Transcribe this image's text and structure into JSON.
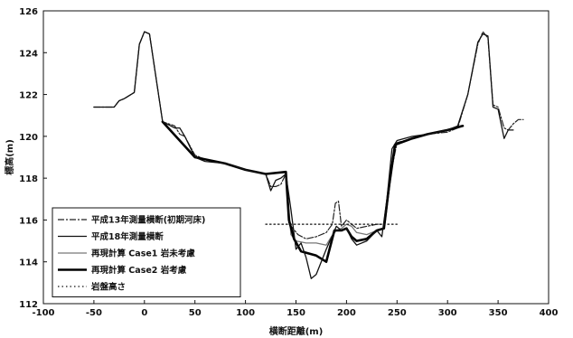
{
  "chart_data": {
    "type": "line",
    "title": "",
    "xlabel": "横断距離(m)",
    "ylabel": "標高(m)",
    "xlim": [
      -100,
      400
    ],
    "ylim": [
      112,
      126
    ],
    "xticks": [
      -100,
      -50,
      0,
      50,
      100,
      150,
      200,
      250,
      300,
      350,
      400
    ],
    "yticks": [
      112,
      114,
      116,
      118,
      120,
      122,
      124,
      126
    ],
    "grid": false,
    "legend_position": "bottom-left",
    "series": [
      {
        "name": "平成13年測量横断(初期河床)",
        "color": "#222222",
        "dash": "dashdot",
        "x": [
          -50,
          -40,
          -30,
          -25,
          -20,
          -10,
          -5,
          0,
          5,
          18,
          30,
          35,
          40,
          50,
          60,
          80,
          100,
          120,
          125,
          130,
          135,
          140,
          143,
          147,
          152,
          160,
          170,
          180,
          186,
          189,
          192,
          195,
          200,
          210,
          220,
          230,
          238,
          245,
          250,
          265,
          280,
          300,
          310,
          320,
          330,
          335,
          340,
          345,
          350,
          356,
          360,
          365,
          370,
          375
        ],
        "y": [
          121.4,
          121.4,
          121.4,
          121.7,
          121.8,
          122.1,
          124.4,
          125.0,
          124.9,
          120.7,
          120.5,
          120.1,
          120.0,
          119.1,
          118.9,
          118.7,
          118.4,
          118.2,
          117.6,
          117.6,
          117.7,
          118.2,
          115.8,
          115.6,
          115.3,
          115.1,
          115.2,
          115.4,
          115.8,
          116.8,
          116.9,
          115.7,
          116.0,
          115.6,
          115.7,
          115.8,
          115.8,
          118.5,
          119.7,
          119.9,
          120.1,
          120.2,
          120.4,
          122.0,
          124.4,
          125.0,
          124.7,
          121.5,
          121.4,
          120.4,
          120.3,
          120.6,
          120.8,
          120.8
        ]
      },
      {
        "name": "平成18年測量横断",
        "color": "#111111",
        "dash": "solid",
        "x": [
          -50,
          -40,
          -30,
          -25,
          -20,
          -10,
          -5,
          0,
          5,
          18,
          30,
          35,
          40,
          50,
          60,
          80,
          100,
          120,
          125,
          130,
          135,
          140,
          145,
          150,
          155,
          160,
          165,
          170,
          180,
          190,
          195,
          200,
          205,
          210,
          220,
          230,
          235,
          240,
          245,
          250,
          265,
          280,
          300,
          310,
          320,
          330,
          335,
          340,
          345,
          350,
          356,
          360,
          365
        ],
        "y": [
          121.4,
          121.4,
          121.4,
          121.7,
          121.8,
          122.1,
          124.4,
          125.0,
          124.9,
          120.7,
          120.4,
          120.4,
          120.0,
          119.0,
          118.8,
          118.7,
          118.4,
          118.2,
          117.4,
          117.9,
          118.0,
          118.2,
          116.5,
          114.6,
          114.9,
          114.2,
          113.2,
          113.4,
          114.6,
          115.7,
          115.5,
          115.6,
          115.1,
          114.8,
          115.0,
          115.5,
          115.2,
          117.0,
          119.4,
          119.8,
          120.0,
          120.1,
          120.3,
          120.5,
          122.0,
          124.5,
          124.9,
          124.8,
          121.4,
          121.3,
          119.9,
          120.3,
          120.3
        ]
      },
      {
        "name": "再現計算 Case1 岩未考慮",
        "color": "#777777",
        "dash": "solid",
        "x": [
          18,
          50,
          80,
          100,
          120,
          140,
          145,
          150,
          160,
          170,
          180,
          185,
          190,
          195,
          200,
          205,
          210,
          220,
          225,
          230,
          237,
          242,
          248,
          265,
          280,
          300,
          315
        ],
        "y": [
          120.7,
          119.0,
          118.7,
          118.4,
          118.2,
          118.3,
          115.3,
          115.0,
          114.9,
          114.9,
          114.8,
          115.2,
          115.5,
          115.6,
          115.8,
          115.7,
          115.4,
          115.3,
          115.4,
          115.5,
          115.6,
          117.6,
          119.6,
          119.9,
          120.1,
          120.3,
          120.5
        ]
      },
      {
        "name": "再現計算 Case2 岩考慮",
        "color": "#000000",
        "dash": "thick",
        "x": [
          18,
          50,
          80,
          100,
          120,
          140,
          143,
          148,
          155,
          170,
          180,
          188,
          195,
          200,
          205,
          210,
          220,
          225,
          230,
          237,
          242,
          248,
          265,
          280,
          300,
          315
        ],
        "y": [
          120.7,
          119.0,
          118.7,
          118.4,
          118.2,
          118.3,
          116.0,
          115.1,
          114.5,
          114.3,
          114.0,
          115.5,
          115.5,
          115.6,
          115.2,
          115.0,
          115.1,
          115.3,
          115.5,
          115.6,
          117.6,
          119.6,
          119.9,
          120.1,
          120.3,
          120.5
        ]
      },
      {
        "name": "岩盤高さ",
        "color": "#111111",
        "dash": "dotted",
        "x": [
          120,
          250
        ],
        "y": [
          115.8,
          115.8
        ]
      }
    ]
  }
}
